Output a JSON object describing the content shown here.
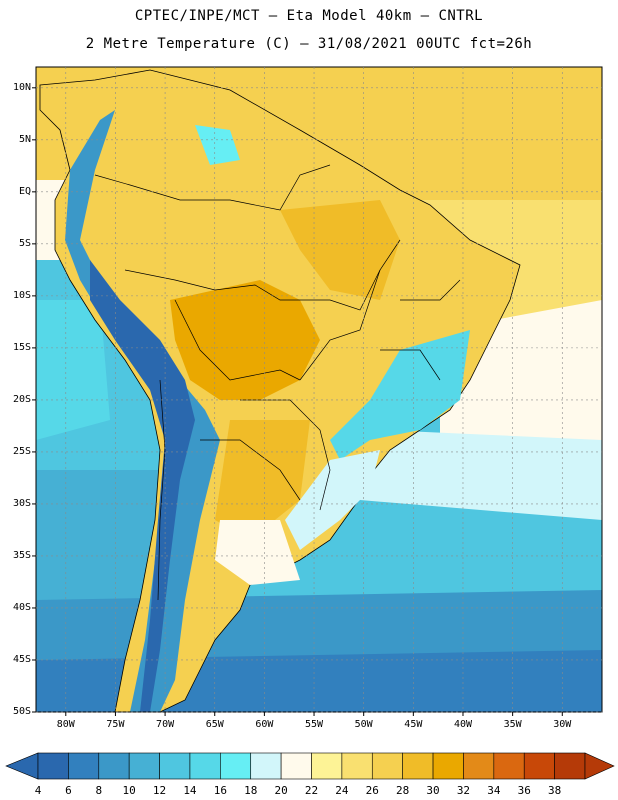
{
  "title_line1": "CPTEC/INPE/MCT –  Eta Model 40km – CNTRL",
  "title_line2": "2 Metre Temperature (C) – 31/08/2021 00UTC fct=26h",
  "lat_labels": [
    "10N",
    "5N",
    "EQ",
    "5S",
    "10S",
    "15S",
    "20S",
    "25S",
    "30S",
    "35S",
    "40S",
    "45S",
    "50S"
  ],
  "lon_labels": [
    "80W",
    "75W",
    "70W",
    "65W",
    "60W",
    "55W",
    "50W",
    "45W",
    "40W",
    "35W",
    "30W"
  ],
  "colorbar_labels": [
    "4",
    "6",
    "8",
    "10",
    "12",
    "14",
    "16",
    "18",
    "20",
    "22",
    "24",
    "26",
    "28",
    "30",
    "32",
    "34",
    "36",
    "38"
  ],
  "colorbar_colors": [
    "#2a68ae",
    "#3280be",
    "#3b98c8",
    "#46b0d4",
    "#4fc6e0",
    "#56d8e8",
    "#66eef4",
    "#d2f6fa",
    "#fffaec",
    "#fdf396",
    "#f9e070",
    "#f5d050",
    "#f0bc28",
    "#eaa800",
    "#e38a18",
    "#da6810",
    "#c84808",
    "#b53a08"
  ],
  "map_extent": {
    "lon_min": -83,
    "lon_max": -26,
    "lat_min": -50,
    "lat_max": 12
  }
}
